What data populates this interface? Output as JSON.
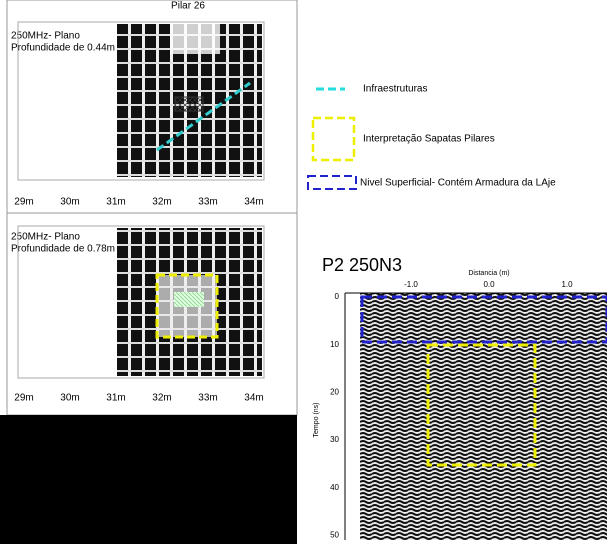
{
  "top_panel": {
    "title": "Pilar 26",
    "label_line1": "250MHz- Plano",
    "label_line2": "Profundidade de 0.44m",
    "x_labels": [
      "29m",
      "30m",
      "31m",
      "32m",
      "33m",
      "34m"
    ]
  },
  "bottom_panel": {
    "label_line1": "250MHz- Plano",
    "label_line2": "Profundidade de 0.78m",
    "x_labels": [
      "29m",
      "30m",
      "31m",
      "32m",
      "33m",
      "34m"
    ]
  },
  "legend": [
    "Infraestruturas",
    "Interpretação Sapatas Pilares",
    "Nivel Superficial- Contém Armadura da LAje"
  ],
  "radargram": {
    "title": "P2 250N3",
    "x_axis_label": "Distancia (m)",
    "x_ticks": [
      "-1.0",
      "0.0",
      "1.0"
    ],
    "y_axis_label": "Tempo (ns)",
    "y_ticks": [
      0,
      10,
      20,
      30,
      40,
      50
    ]
  }
}
